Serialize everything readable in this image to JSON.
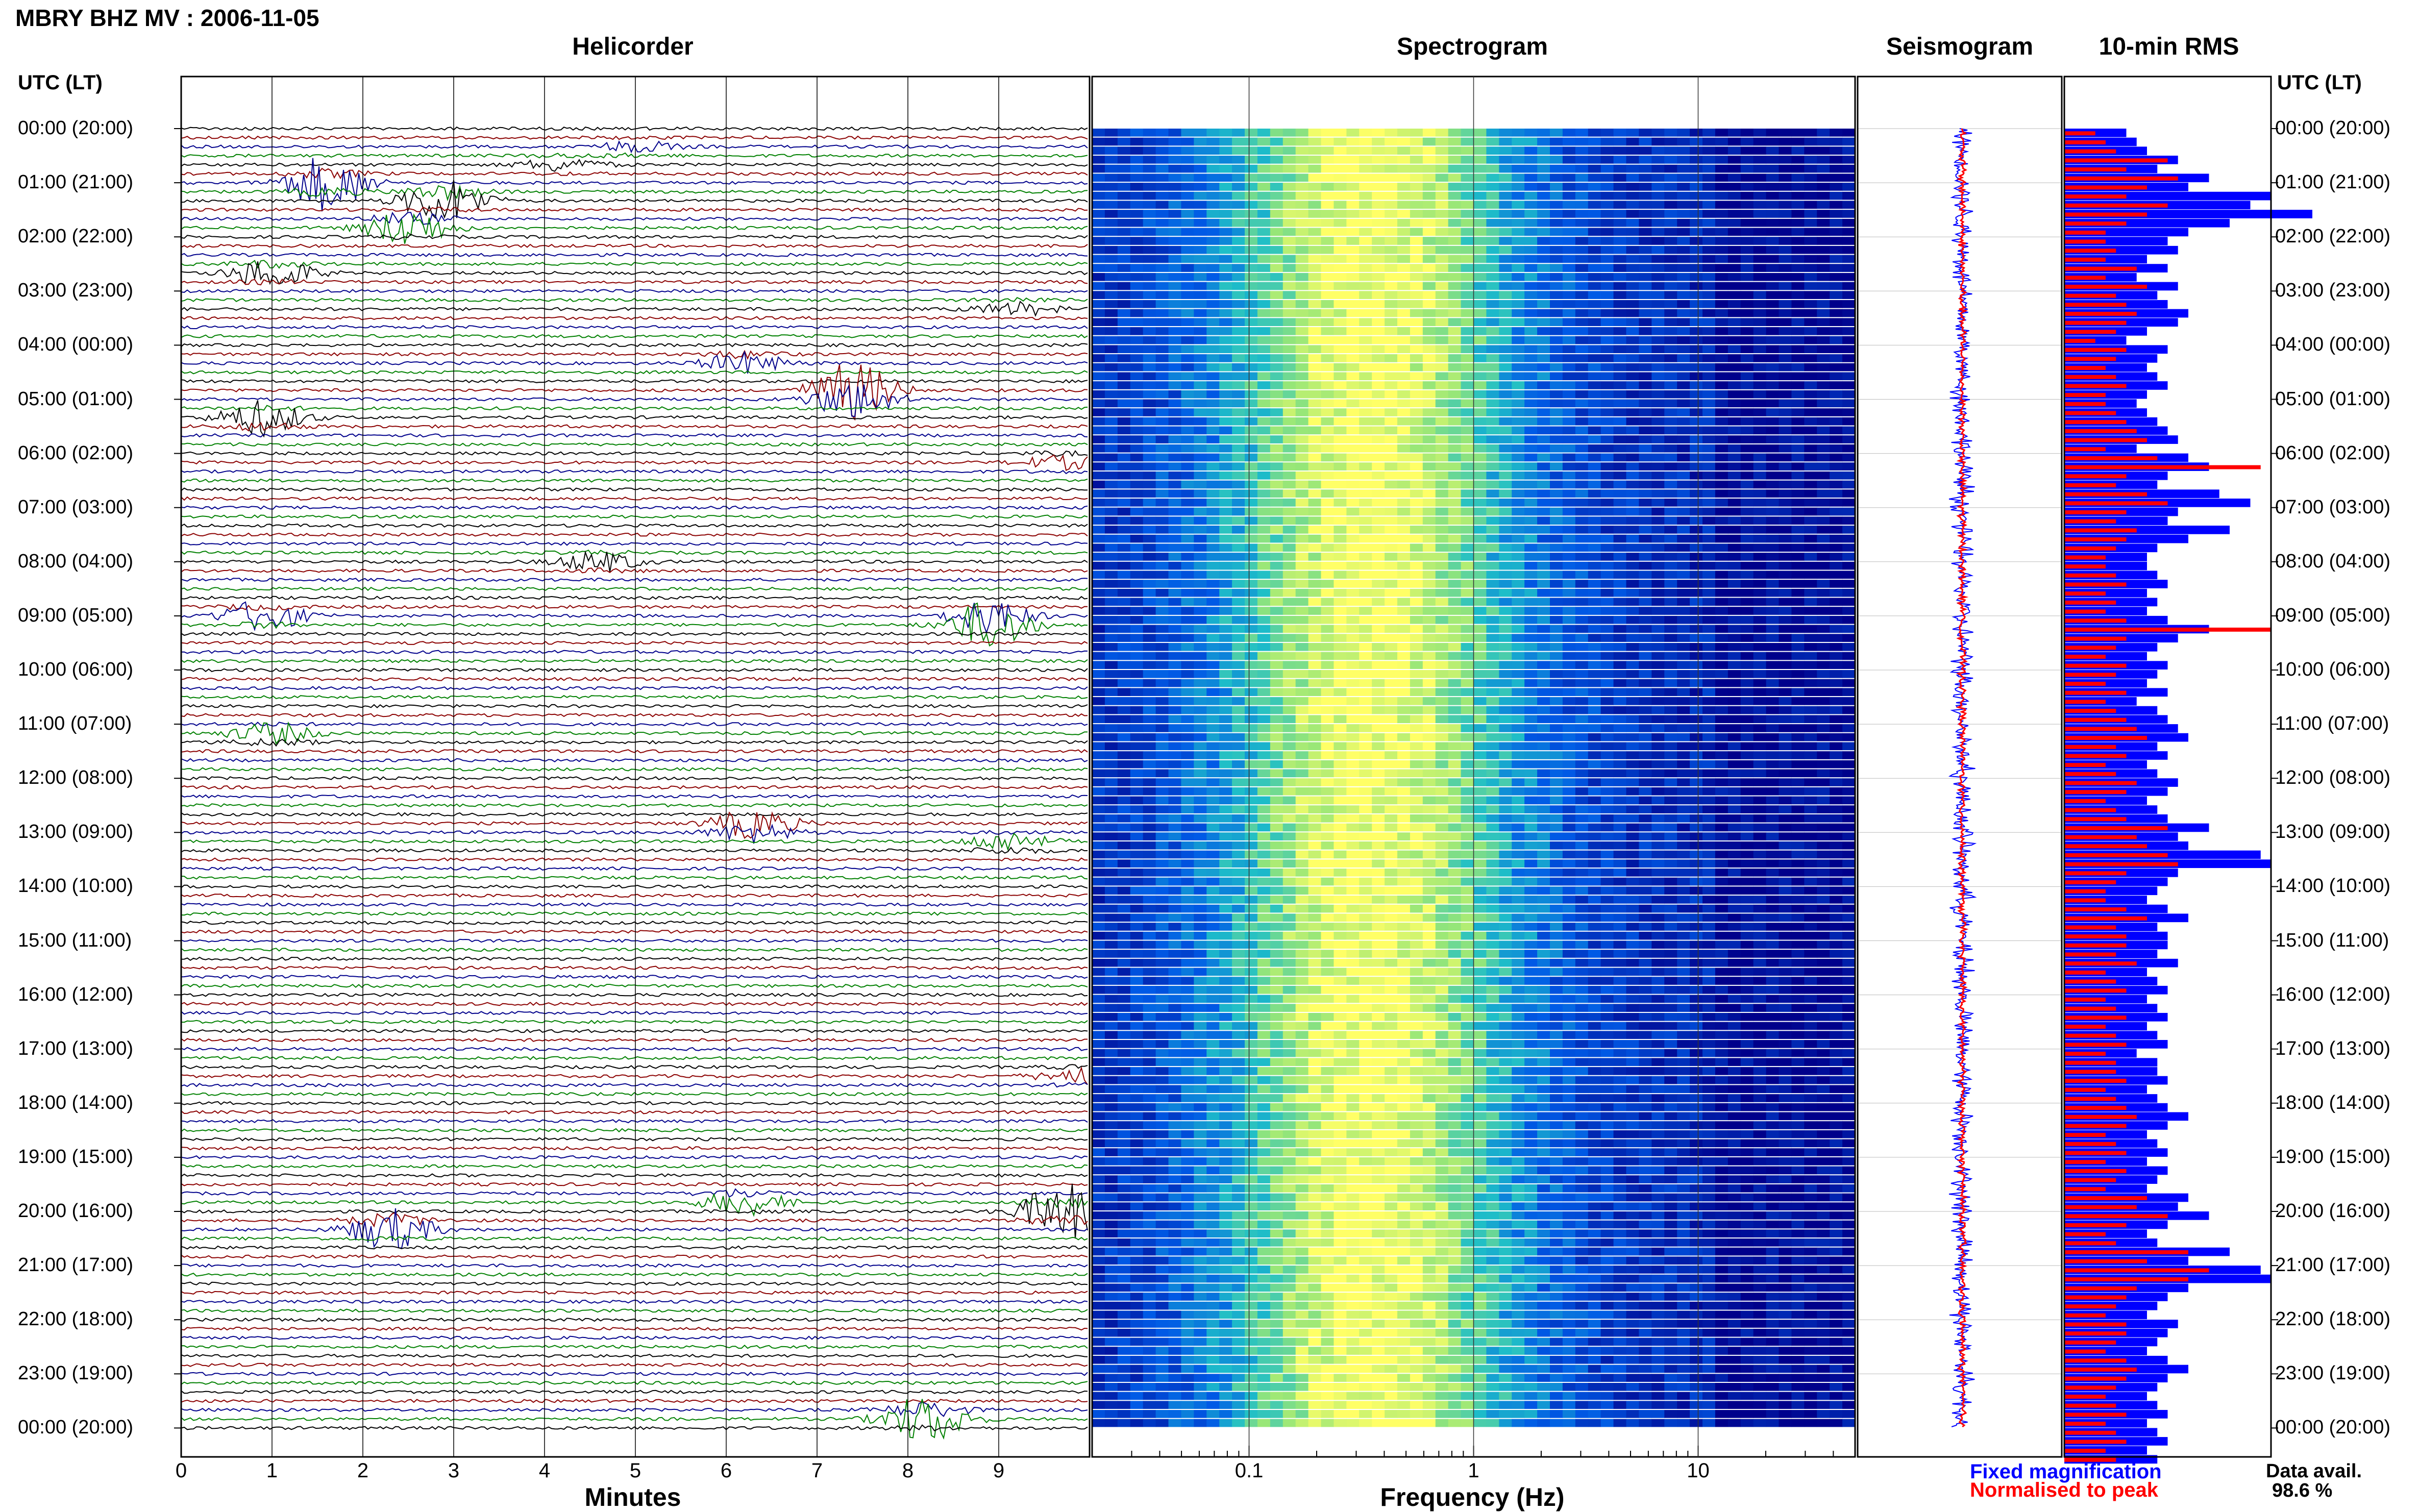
{
  "title": "MBRY BHZ MV : 2006-11-05",
  "panels": {
    "helicorder": "Helicorder",
    "spectrogram": "Spectrogram",
    "seismogram": "Seismogram",
    "rms": "10-min RMS"
  },
  "time_axis_label": "UTC (LT)",
  "time_ticks": [
    "00:00 (20:00)",
    "01:00 (21:00)",
    "02:00 (22:00)",
    "03:00 (23:00)",
    "04:00 (00:00)",
    "05:00 (01:00)",
    "06:00 (02:00)",
    "07:00 (03:00)",
    "08:00 (04:00)",
    "09:00 (05:00)",
    "10:00 (06:00)",
    "11:00 (07:00)",
    "12:00 (08:00)",
    "13:00 (09:00)",
    "14:00 (10:00)",
    "15:00 (11:00)",
    "16:00 (12:00)",
    "17:00 (13:00)",
    "18:00 (14:00)",
    "19:00 (15:00)",
    "20:00 (16:00)",
    "21:00 (17:00)",
    "22:00 (18:00)",
    "23:00 (19:00)",
    "00:00 (20:00)"
  ],
  "helicorder_x": {
    "label": "Minutes",
    "ticks": [
      "0",
      "1",
      "2",
      "3",
      "4",
      "5",
      "6",
      "7",
      "8",
      "9"
    ]
  },
  "spectrogram_x": {
    "label": "Frequency (Hz)",
    "ticks": [
      "0.1",
      "1",
      "10"
    ]
  },
  "legend": {
    "fixed": "Fixed magnification",
    "normalised": "Normalised to peak",
    "fixed_color": "#0000ff",
    "normalised_color": "#ff0000"
  },
  "availability": {
    "label": "Data avail.",
    "value": "98.6 %"
  },
  "colors": {
    "trace_cycle": [
      "#000000",
      "#8b0000",
      "#00008b",
      "#008000"
    ],
    "spec_low": "#00008b",
    "spec_high": "#ffff66"
  },
  "chart_data": {
    "type": "heatmap",
    "title": "MBRY BHZ MV : 2006-11-05",
    "ylabel": "UTC (LT)",
    "helicorder": {
      "xlabel": "Minutes",
      "xlim": [
        0,
        10
      ],
      "rows_per_hour": 6,
      "events": [
        {
          "hour": 0.35,
          "minute": 5.0,
          "amp": 0.5
        },
        {
          "hour": 0.65,
          "minute": 4.2,
          "amp": 0.6
        },
        {
          "hour": 1.0,
          "minute": 1.6,
          "amp": 2.5
        },
        {
          "hour": 1.3,
          "minute": 2.9,
          "amp": 2.2
        },
        {
          "hour": 1.8,
          "minute": 2.5,
          "amp": 1.8
        },
        {
          "hour": 2.65,
          "minute": 1.0,
          "amp": 1.4
        },
        {
          "hour": 3.3,
          "minute": 9.2,
          "amp": 0.6
        },
        {
          "hour": 4.3,
          "minute": 6.2,
          "amp": 1.0
        },
        {
          "hour": 4.9,
          "minute": 7.4,
          "amp": 3.5
        },
        {
          "hour": 5.35,
          "minute": 0.9,
          "amp": 1.6
        },
        {
          "hour": 6.15,
          "minute": 9.7,
          "amp": 0.6
        },
        {
          "hour": 9.1,
          "minute": 8.9,
          "amp": 3.0
        },
        {
          "hour": 9.0,
          "minute": 0.9,
          "amp": 1.4
        },
        {
          "hour": 8.0,
          "minute": 4.6,
          "amp": 0.9
        },
        {
          "hour": 11.2,
          "minute": 1.0,
          "amp": 1.0
        },
        {
          "hour": 12.9,
          "minute": 6.3,
          "amp": 1.8
        },
        {
          "hour": 13.2,
          "minute": 9.1,
          "amp": 0.9
        },
        {
          "hour": 17.5,
          "minute": 9.9,
          "amp": 0.8
        },
        {
          "hour": 19.8,
          "minute": 6.2,
          "amp": 1.2
        },
        {
          "hour": 20.0,
          "minute": 9.7,
          "amp": 2.6
        },
        {
          "hour": 20.3,
          "minute": 2.3,
          "amp": 2.0
        },
        {
          "hour": 23.8,
          "minute": 8.2,
          "amp": 2.4
        }
      ]
    },
    "spectrogram": {
      "xlabel": "Frequency (Hz)",
      "xscale": "log",
      "xlim": [
        0.02,
        50
      ],
      "peak_band_hz": [
        0.2,
        0.6
      ]
    },
    "seismogram": {
      "series": [
        {
          "name": "Fixed magnification"
        },
        {
          "name": "Normalised to peak"
        }
      ]
    },
    "rms": {
      "interval_minutes": 10,
      "fixed": [
        0.3,
        0.35,
        0.4,
        0.55,
        0.45,
        0.7,
        0.6,
        1.0,
        0.9,
        1.2,
        0.8,
        0.6,
        0.5,
        0.55,
        0.4,
        0.5,
        0.35,
        0.55,
        0.45,
        0.5,
        0.6,
        0.55,
        0.4,
        0.3,
        0.5,
        0.45,
        0.4,
        0.45,
        0.5,
        0.4,
        0.35,
        0.4,
        0.45,
        0.5,
        0.55,
        0.35,
        0.6,
        0.7,
        0.5,
        0.45,
        0.75,
        0.9,
        0.55,
        0.5,
        0.8,
        0.6,
        0.45,
        0.4,
        0.4,
        0.45,
        0.5,
        0.4,
        0.45,
        0.4,
        0.5,
        0.7,
        0.55,
        0.45,
        0.4,
        0.5,
        0.45,
        0.4,
        0.5,
        0.35,
        0.45,
        0.5,
        0.55,
        0.6,
        0.45,
        0.5,
        0.4,
        0.45,
        0.55,
        0.5,
        0.4,
        0.45,
        0.5,
        0.7,
        0.55,
        0.6,
        0.95,
        1.0,
        0.55,
        0.5,
        0.45,
        0.4,
        0.5,
        0.6,
        0.45,
        0.5,
        0.5,
        0.45,
        0.55,
        0.4,
        0.45,
        0.5,
        0.4,
        0.45,
        0.5,
        0.4,
        0.45,
        0.5,
        0.35,
        0.45,
        0.45,
        0.5,
        0.4,
        0.45,
        0.5,
        0.6,
        0.5,
        0.4,
        0.45,
        0.5,
        0.4,
        0.5,
        0.45,
        0.4,
        0.6,
        0.55,
        0.7,
        0.5,
        0.4,
        0.45,
        0.8,
        0.6,
        0.95,
        1.0,
        0.6,
        0.5,
        0.45,
        0.4,
        0.55,
        0.5,
        0.45,
        0.4,
        0.5,
        0.6,
        0.5,
        0.45,
        0.4,
        0.45,
        0.5,
        0.4,
        0.45,
        0.5,
        0.4,
        0.45
      ],
      "normalised": [
        0.15,
        0.2,
        0.25,
        0.5,
        0.3,
        0.55,
        0.4,
        0.3,
        0.5,
        0.4,
        0.3,
        0.2,
        0.2,
        0.25,
        0.2,
        0.35,
        0.2,
        0.4,
        0.25,
        0.3,
        0.35,
        0.3,
        0.25,
        0.15,
        0.3,
        0.25,
        0.2,
        0.25,
        0.3,
        0.2,
        0.2,
        0.25,
        0.3,
        0.35,
        0.4,
        0.2,
        0.45,
        0.95,
        0.3,
        0.25,
        0.4,
        0.5,
        0.3,
        0.25,
        0.35,
        0.3,
        0.25,
        0.2,
        0.2,
        0.25,
        0.3,
        0.2,
        0.25,
        0.2,
        0.3,
        1.0,
        0.3,
        0.25,
        0.2,
        0.3,
        0.25,
        0.2,
        0.3,
        0.2,
        0.25,
        0.3,
        0.35,
        0.4,
        0.25,
        0.3,
        0.2,
        0.25,
        0.35,
        0.3,
        0.2,
        0.25,
        0.3,
        0.5,
        0.35,
        0.4,
        0.5,
        0.55,
        0.3,
        0.25,
        0.2,
        0.2,
        0.3,
        0.4,
        0.25,
        0.3,
        0.3,
        0.25,
        0.35,
        0.2,
        0.25,
        0.3,
        0.2,
        0.25,
        0.3,
        0.2,
        0.25,
        0.3,
        0.2,
        0.25,
        0.25,
        0.3,
        0.2,
        0.25,
        0.3,
        0.35,
        0.3,
        0.2,
        0.25,
        0.3,
        0.2,
        0.3,
        0.25,
        0.2,
        0.4,
        0.35,
        0.5,
        0.3,
        0.2,
        0.25,
        0.6,
        0.4,
        0.7,
        0.6,
        0.35,
        0.3,
        0.25,
        0.2,
        0.3,
        0.3,
        0.25,
        0.2,
        0.3,
        0.35,
        0.3,
        0.25,
        0.2,
        0.25,
        0.3,
        0.2,
        0.25,
        0.3,
        0.2,
        0.25
      ]
    },
    "data_availability_percent": 98.6
  }
}
